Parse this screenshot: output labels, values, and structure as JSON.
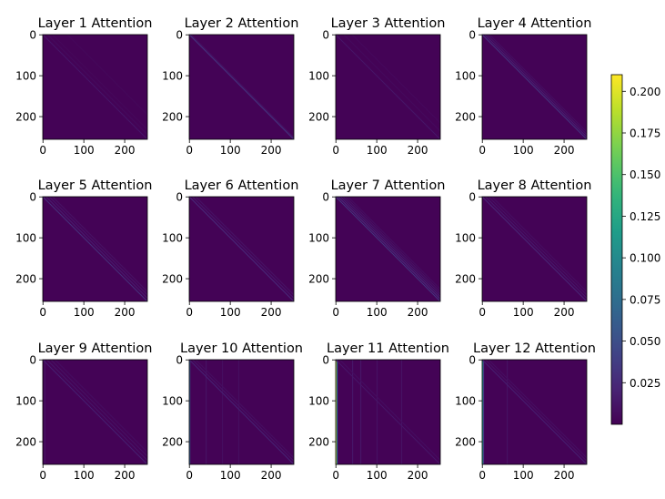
{
  "chart_data": {
    "type": "heatmap",
    "layout": {
      "rows": 3,
      "cols": 4
    },
    "panels": [
      {
        "title": "Layer 1 Attention",
        "diagonals": [
          [
            0,
            0.012
          ],
          [
            12,
            0.006
          ],
          [
            24,
            0.004
          ],
          [
            60,
            0.004
          ]
        ],
        "columns": []
      },
      {
        "title": "Layer 2 Attention",
        "diagonals": [
          [
            0,
            0.03
          ],
          [
            4,
            0.01
          ]
        ],
        "columns": []
      },
      {
        "title": "Layer 3 Attention",
        "diagonals": [
          [
            0,
            0.012
          ],
          [
            20,
            0.006
          ],
          [
            40,
            0.005
          ]
        ],
        "columns": []
      },
      {
        "title": "Layer 4 Attention",
        "diagonals": [
          [
            0,
            0.03
          ],
          [
            6,
            0.018
          ],
          [
            12,
            0.012
          ],
          [
            18,
            0.008
          ]
        ],
        "columns": []
      },
      {
        "title": "Layer 5 Attention",
        "diagonals": [
          [
            0,
            0.028
          ],
          [
            8,
            0.016
          ],
          [
            16,
            0.012
          ],
          [
            24,
            0.01
          ]
        ],
        "columns": []
      },
      {
        "title": "Layer 6 Attention",
        "diagonals": [
          [
            0,
            0.024
          ],
          [
            8,
            0.014
          ],
          [
            16,
            0.01
          ]
        ],
        "columns": []
      },
      {
        "title": "Layer 7 Attention",
        "diagonals": [
          [
            0,
            0.032
          ],
          [
            6,
            0.024
          ],
          [
            12,
            0.018
          ],
          [
            18,
            0.014
          ],
          [
            24,
            0.01
          ],
          [
            30,
            0.008
          ]
        ],
        "columns": []
      },
      {
        "title": "Layer 8 Attention",
        "diagonals": [
          [
            0,
            0.022
          ],
          [
            8,
            0.014
          ],
          [
            16,
            0.01
          ],
          [
            24,
            0.008
          ]
        ],
        "columns": []
      },
      {
        "title": "Layer 9 Attention",
        "diagonals": [
          [
            0,
            0.018
          ],
          [
            10,
            0.012
          ],
          [
            20,
            0.01
          ],
          [
            30,
            0.008
          ]
        ],
        "columns": [
          [
            4,
            0.01
          ]
        ]
      },
      {
        "title": "Layer 10 Attention",
        "diagonals": [
          [
            0,
            0.02
          ],
          [
            8,
            0.012
          ],
          [
            16,
            0.008
          ]
        ],
        "columns": [
          [
            0,
            0.06
          ],
          [
            40,
            0.01
          ],
          [
            80,
            0.008
          ],
          [
            120,
            0.008
          ]
        ]
      },
      {
        "title": "Layer 11 Attention",
        "diagonals": [
          [
            0,
            0.012
          ],
          [
            10,
            0.008
          ]
        ],
        "columns": [
          [
            0,
            0.2
          ],
          [
            2,
            0.08
          ],
          [
            40,
            0.012
          ],
          [
            60,
            0.012
          ],
          [
            100,
            0.01
          ],
          [
            160,
            0.01
          ]
        ]
      },
      {
        "title": "Layer 12 Attention",
        "diagonals": [
          [
            0,
            0.018
          ],
          [
            8,
            0.01
          ],
          [
            16,
            0.008
          ]
        ],
        "columns": [
          [
            0,
            0.12
          ],
          [
            2,
            0.04
          ],
          [
            60,
            0.01
          ]
        ]
      }
    ],
    "matrix_size": 256,
    "x_ticks": [
      "0",
      "100",
      "200"
    ],
    "y_ticks": [
      "0",
      "100",
      "200"
    ],
    "colorbar": {
      "ticks": [
        "0.025",
        "0.050",
        "0.075",
        "0.100",
        "0.125",
        "0.150",
        "0.175",
        "0.200"
      ],
      "min": 0,
      "max": 0.21,
      "colormap": "viridis"
    },
    "xlabel": "",
    "ylabel": ""
  }
}
